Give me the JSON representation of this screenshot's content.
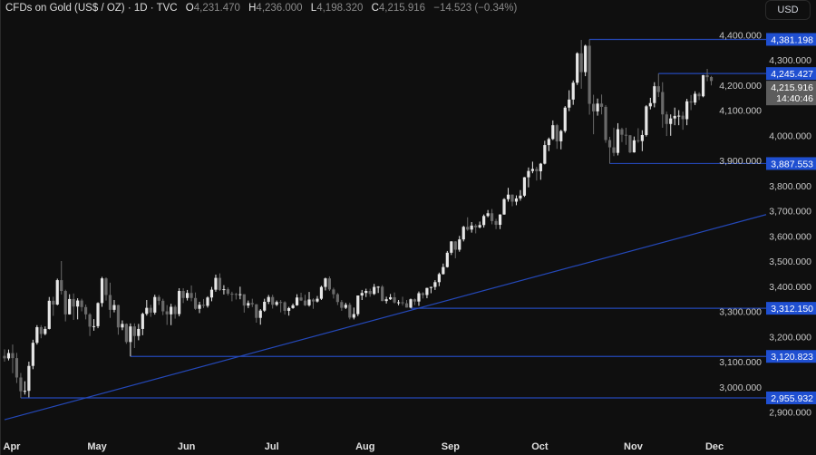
{
  "header": {
    "symbol": "CFDs on Gold (US$ / OZ) · 1D · TVC",
    "o_label": "O",
    "o_value": "4,231.470",
    "h_label": "H",
    "h_value": "4,236.000",
    "l_label": "L",
    "l_value": "4,198.320",
    "c_label": "C",
    "c_value": "4,215.916",
    "change": "−14.523 (−0.34%)"
  },
  "currency_button": "USD",
  "colors": {
    "background": "#0f0f0f",
    "up_candle": "#e6e6e6",
    "down_candle": "#6a6a6a",
    "drawing_line": "#2448b8",
    "level_badge": "#1f4fd1",
    "last_price_badge": "#5d5d5d"
  },
  "chart_data": {
    "type": "candlestick",
    "title": "CFDs on Gold (US$ / OZ) · 1D · TVC",
    "ylim": [
      2840,
      4460
    ],
    "y_ticks": [
      "4,400.000",
      "4,300.000",
      "4,200.000",
      "4,100.000",
      "4,000.000",
      "3,900.000",
      "3,800.000",
      "3,700.000",
      "3,600.000",
      "3,500.000",
      "3,400.000",
      "3,300.000",
      "3,200.000",
      "3,100.000",
      "3,000.000",
      "2,900.000"
    ],
    "grid": false,
    "months": [
      {
        "label": "Apr",
        "candles": [
          [
            3123,
            3149,
            3100,
            3113
          ],
          [
            3113,
            3148,
            3105,
            3134
          ],
          [
            3134,
            3168,
            3054,
            3114
          ],
          [
            3114,
            3135,
            3015,
            3037
          ],
          [
            3037,
            3055,
            2956,
            2982
          ],
          [
            2982,
            3022,
            2969,
            2984
          ],
          [
            2984,
            3100,
            2958,
            3083
          ],
          [
            3083,
            3187,
            3070,
            3175
          ],
          [
            3175,
            3245,
            3168,
            3237
          ],
          [
            3237,
            3245,
            3193,
            3210
          ],
          [
            3210,
            3240,
            3205,
            3230
          ],
          [
            3230,
            3357,
            3228,
            3342
          ],
          [
            3342,
            3358,
            3282,
            3327
          ],
          [
            3327,
            3430,
            3324,
            3424
          ],
          [
            3424,
            3500,
            3367,
            3381
          ],
          [
            3381,
            3386,
            3260,
            3288
          ],
          [
            3288,
            3368,
            3287,
            3349
          ],
          [
            3349,
            3371,
            3266,
            3319
          ],
          [
            3319,
            3352,
            3268,
            3343
          ],
          [
            3343,
            3350,
            3300,
            3317
          ],
          [
            3317,
            3327,
            3268,
            3288
          ]
        ]
      },
      {
        "label": "May",
        "candles": [
          [
            3288,
            3293,
            3202,
            3239
          ],
          [
            3239,
            3269,
            3223,
            3241
          ],
          [
            3241,
            3336,
            3233,
            3333
          ],
          [
            3333,
            3437,
            3318,
            3431
          ],
          [
            3431,
            3435,
            3343,
            3365
          ],
          [
            3365,
            3414,
            3274,
            3306
          ],
          [
            3306,
            3345,
            3296,
            3325
          ],
          [
            3325,
            3326,
            3207,
            3236
          ],
          [
            3236,
            3264,
            3225,
            3250
          ],
          [
            3250,
            3252,
            3171,
            3178
          ],
          [
            3178,
            3252,
            3121,
            3240
          ],
          [
            3240,
            3252,
            3154,
            3202
          ],
          [
            3202,
            3250,
            3185,
            3230
          ],
          [
            3230,
            3295,
            3205,
            3290
          ],
          [
            3290,
            3345,
            3283,
            3314
          ],
          [
            3314,
            3326,
            3278,
            3295
          ],
          [
            3295,
            3366,
            3287,
            3357
          ],
          [
            3357,
            3365,
            3325,
            3342
          ],
          [
            3342,
            3350,
            3285,
            3300
          ],
          [
            3300,
            3325,
            3246,
            3288
          ],
          [
            3288,
            3330,
            3245,
            3318
          ],
          [
            3318,
            3325,
            3271,
            3289
          ]
        ]
      },
      {
        "label": "Jun",
        "candles": [
          [
            3289,
            3392,
            3280,
            3381
          ],
          [
            3381,
            3392,
            3333,
            3353
          ],
          [
            3353,
            3385,
            3343,
            3373
          ],
          [
            3373,
            3403,
            3340,
            3353
          ],
          [
            3353,
            3375,
            3306,
            3310
          ],
          [
            3310,
            3338,
            3293,
            3326
          ],
          [
            3326,
            3349,
            3313,
            3322
          ],
          [
            3322,
            3360,
            3315,
            3355
          ],
          [
            3355,
            3397,
            3340,
            3386
          ],
          [
            3386,
            3446,
            3378,
            3433
          ],
          [
            3433,
            3451,
            3381,
            3385
          ],
          [
            3385,
            3404,
            3367,
            3388
          ],
          [
            3388,
            3395,
            3363,
            3370
          ],
          [
            3370,
            3378,
            3340,
            3369
          ],
          [
            3369,
            3373,
            3347,
            3368
          ],
          [
            3368,
            3398,
            3348,
            3368
          ],
          [
            3368,
            3368,
            3295,
            3323
          ],
          [
            3323,
            3343,
            3313,
            3333
          ],
          [
            3333,
            3350,
            3317,
            3328
          ],
          [
            3328,
            3329,
            3255,
            3274
          ],
          [
            3274,
            3309,
            3247,
            3303
          ]
        ]
      },
      {
        "label": "Jul",
        "candles": [
          [
            3303,
            3350,
            3298,
            3338
          ],
          [
            3338,
            3365,
            3329,
            3357
          ],
          [
            3357,
            3366,
            3311,
            3326
          ],
          [
            3326,
            3343,
            3321,
            3337
          ],
          [
            3337,
            3345,
            3296,
            3336
          ],
          [
            3336,
            3340,
            3287,
            3302
          ],
          [
            3302,
            3318,
            3283,
            3313
          ],
          [
            3313,
            3331,
            3310,
            3324
          ],
          [
            3324,
            3368,
            3322,
            3355
          ],
          [
            3355,
            3374,
            3341,
            3343
          ],
          [
            3343,
            3366,
            3321,
            3324
          ],
          [
            3324,
            3377,
            3319,
            3347
          ],
          [
            3347,
            3352,
            3310,
            3339
          ],
          [
            3339,
            3361,
            3335,
            3350
          ],
          [
            3350,
            3402,
            3345,
            3397
          ],
          [
            3397,
            3434,
            3383,
            3431
          ],
          [
            3431,
            3439,
            3381,
            3387
          ],
          [
            3387,
            3394,
            3351,
            3368
          ],
          [
            3368,
            3373,
            3325,
            3337
          ],
          [
            3337,
            3345,
            3302,
            3314
          ],
          [
            3314,
            3334,
            3309,
            3326
          ],
          [
            3326,
            3334,
            3268,
            3275
          ],
          [
            3275,
            3315,
            3268,
            3289
          ]
        ]
      },
      {
        "label": "Aug",
        "candles": [
          [
            3289,
            3363,
            3281,
            3363
          ],
          [
            3363,
            3385,
            3345,
            3373
          ],
          [
            3373,
            3390,
            3357,
            3381
          ],
          [
            3381,
            3390,
            3358,
            3369
          ],
          [
            3369,
            3409,
            3365,
            3397
          ],
          [
            3397,
            3400,
            3373,
            3398
          ],
          [
            3398,
            3404,
            3340,
            3341
          ],
          [
            3341,
            3358,
            3331,
            3348
          ],
          [
            3348,
            3369,
            3345,
            3356
          ],
          [
            3356,
            3375,
            3331,
            3335
          ],
          [
            3335,
            3345,
            3324,
            3336
          ],
          [
            3336,
            3358,
            3323,
            3332
          ],
          [
            3332,
            3345,
            3315,
            3315
          ],
          [
            3315,
            3351,
            3312,
            3348
          ],
          [
            3348,
            3351,
            3325,
            3339
          ],
          [
            3339,
            3379,
            3322,
            3372
          ],
          [
            3372,
            3376,
            3351,
            3365
          ],
          [
            3365,
            3394,
            3352,
            3393
          ],
          [
            3393,
            3398,
            3372,
            3397
          ],
          [
            3397,
            3424,
            3385,
            3416
          ],
          [
            3416,
            3454,
            3400,
            3448
          ]
        ]
      },
      {
        "label": "Sep",
        "candles": [
          [
            3448,
            3490,
            3446,
            3476
          ],
          [
            3476,
            3540,
            3474,
            3533
          ],
          [
            3533,
            3579,
            3524,
            3578
          ],
          [
            3578,
            3579,
            3511,
            3545
          ],
          [
            3545,
            3600,
            3537,
            3586
          ],
          [
            3586,
            3640,
            3578,
            3636
          ],
          [
            3636,
            3674,
            3620,
            3625
          ],
          [
            3625,
            3655,
            3613,
            3641
          ],
          [
            3641,
            3647,
            3610,
            3634
          ],
          [
            3634,
            3657,
            3630,
            3643
          ],
          [
            3643,
            3685,
            3633,
            3679
          ],
          [
            3679,
            3703,
            3674,
            3690
          ],
          [
            3690,
            3707,
            3646,
            3659
          ],
          [
            3659,
            3668,
            3627,
            3644
          ],
          [
            3644,
            3686,
            3627,
            3685
          ],
          [
            3685,
            3750,
            3684,
            3746
          ],
          [
            3746,
            3791,
            3736,
            3764
          ],
          [
            3764,
            3765,
            3718,
            3736
          ],
          [
            3736,
            3761,
            3722,
            3749
          ],
          [
            3749,
            3782,
            3740,
            3760
          ],
          [
            3760,
            3834,
            3755,
            3833
          ],
          [
            3833,
            3872,
            3793,
            3858
          ]
        ]
      },
      {
        "label": "Oct",
        "candles": [
          [
            3858,
            3895,
            3849,
            3866
          ],
          [
            3866,
            3875,
            3820,
            3857
          ],
          [
            3857,
            3890,
            3823,
            3887
          ],
          [
            3887,
            3978,
            3884,
            3961
          ],
          [
            3961,
            3991,
            3937,
            3985
          ],
          [
            3985,
            4059,
            3981,
            4040
          ],
          [
            4040,
            4045,
            3946,
            3976
          ],
          [
            3976,
            4022,
            3944,
            4017
          ],
          [
            4017,
            4116,
            4010,
            4110
          ],
          [
            4110,
            4179,
            4096,
            4142
          ],
          [
            4142,
            4218,
            4121,
            4209
          ],
          [
            4209,
            4330,
            4200,
            4326
          ],
          [
            4326,
            4379,
            4185,
            4251
          ],
          [
            4251,
            4360,
            4235,
            4356
          ],
          [
            4356,
            4381.198,
            4082,
            4125
          ],
          [
            4125,
            4161,
            4004,
            4095
          ],
          [
            4095,
            4146,
            4078,
            4126
          ],
          [
            4126,
            4162,
            4083,
            4113
          ],
          [
            4113,
            4120,
            3970,
            3981
          ],
          [
            3981,
            3994,
            3887.553,
            3952
          ],
          [
            3952,
            4030,
            3917,
            3930
          ],
          [
            3930,
            4048,
            3920,
            4024
          ],
          [
            4024,
            4030,
            3973,
            4002
          ]
        ]
      },
      {
        "label": "Nov",
        "candles": [
          [
            4002,
            4030,
            3962,
            4000
          ],
          [
            4000,
            4001,
            3929,
            3932
          ],
          [
            3932,
            3995,
            3931,
            3980
          ],
          [
            3980,
            4028,
            3970,
            3977
          ],
          [
            3977,
            4020,
            3937,
            4001
          ],
          [
            4001,
            4120,
            3995,
            4115
          ],
          [
            4115,
            4149,
            4103,
            4128
          ],
          [
            4128,
            4211,
            4111,
            4195
          ],
          [
            4195,
            4245.427,
            4152,
            4172
          ],
          [
            4172,
            4211,
            4030,
            4083
          ],
          [
            4083,
            4094,
            3997,
            4045
          ],
          [
            4045,
            4083,
            3998,
            4067
          ],
          [
            4067,
            4110,
            4040,
            4077
          ],
          [
            4077,
            4100,
            4040,
            4078
          ],
          [
            4078,
            4094,
            4022,
            4064
          ],
          [
            4064,
            4145,
            4040,
            4135
          ],
          [
            4135,
            4160,
            4100,
            4130
          ],
          [
            4130,
            4175,
            4120,
            4165
          ],
          [
            4165,
            4171,
            4140,
            4155
          ],
          [
            4155,
            4240,
            4151,
            4239
          ]
        ]
      },
      {
        "label": "Dec",
        "candles": [
          [
            4239,
            4264,
            4215,
            4231
          ],
          [
            4231.47,
            4236,
            4198.32,
            4215.916
          ]
        ]
      }
    ],
    "levels": [
      {
        "label": "4,381.198",
        "price": 4381.198,
        "from_month": "Oct",
        "from_day_index": 14
      },
      {
        "label": "4,245.427",
        "price": 4245.427,
        "from_month": "Nov",
        "from_day_index": 8
      },
      {
        "label": "3,887.553",
        "price": 3887.553,
        "from_month": "Oct",
        "from_day_index": 19
      },
      {
        "label": "3,312.150",
        "price": 3312.15,
        "from_month": "Aug",
        "from_day_index": 13
      },
      {
        "label": "3,120.823",
        "price": 3120.823,
        "from_month": "May",
        "from_day_index": 10
      },
      {
        "label": "2,955.932",
        "price": 2955.932,
        "from_month": "Apr",
        "from_day_index": 4
      }
    ],
    "trendline": {
      "from": {
        "month": "Apr",
        "day_index": 0,
        "price": 2869
      },
      "to": {
        "month": "Dec",
        "day_index": 1,
        "price": 3626
      },
      "extend": "right"
    },
    "last_price": {
      "label": "4,215.916",
      "price": 4215.916,
      "countdown": "14:40:46"
    }
  }
}
